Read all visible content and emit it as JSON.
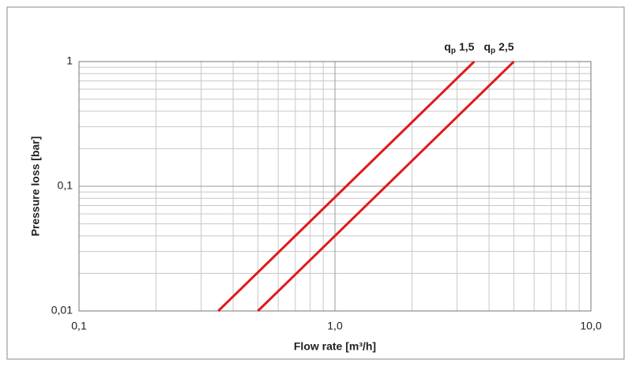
{
  "chart_data": {
    "type": "line",
    "log_x": true,
    "log_y": true,
    "grid": true,
    "x_label": "Flow rate [m³/h]",
    "y_label": "Pressure loss [bar]",
    "xlim": [
      0.1,
      10
    ],
    "ylim": [
      0.01,
      1
    ],
    "xticks": [
      {
        "value": 0.1,
        "label": "0,1"
      },
      {
        "value": 1,
        "label": "1,0"
      },
      {
        "value": 10,
        "label": "10,0"
      }
    ],
    "yticks": [
      {
        "value": 0.01,
        "label": "0,01"
      },
      {
        "value": 0.1,
        "label": "0,1"
      },
      1
    ],
    "x_minor_ticks": [
      0.2,
      0.3,
      0.4,
      0.5,
      0.6,
      0.7,
      0.8,
      0.9,
      2,
      3,
      4,
      5,
      6,
      7,
      8,
      9
    ],
    "y_minor_ticks": [
      0.02,
      0.03,
      0.04,
      0.05,
      0.06,
      0.07,
      0.08,
      0.09,
      0.2,
      0.3,
      0.4,
      0.5,
      0.6,
      0.7,
      0.8,
      0.9
    ],
    "series": [
      {
        "symbol": "q",
        "subscript": "p",
        "name": "1,5",
        "color": "#e0191b",
        "x": [
          0.35,
          3.5
        ],
        "values": [
          0.01,
          1
        ]
      },
      {
        "symbol": "q",
        "subscript": "p",
        "name": "2,5",
        "color": "#e0191b",
        "x": [
          0.5,
          5
        ],
        "values": [
          0.01,
          1
        ]
      }
    ]
  }
}
